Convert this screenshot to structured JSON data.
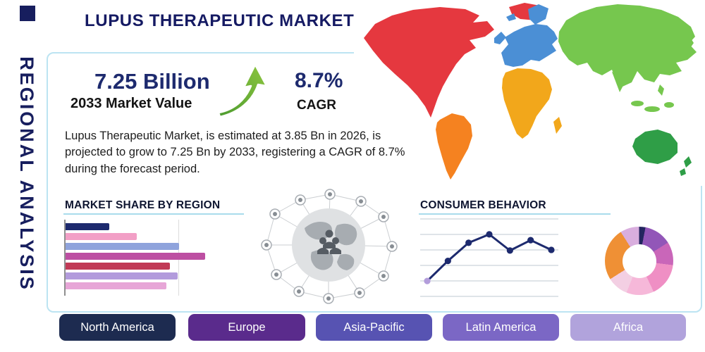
{
  "header": {
    "title": "LUPUS THERAPEUTIC MARKET"
  },
  "sidebar": {
    "vertical_label": "REGIONAL ANALYSIS"
  },
  "stats": {
    "market_value": "7.25 Billion",
    "market_value_label": "2033 Market Value",
    "growth_icon": "growth-arrow-icon",
    "cagr_value": "8.7%",
    "cagr_label": "CAGR"
  },
  "description": "Lupus Therapeutic Market, is estimated at 3.85 Bn in 2026, is projected to grow to 7.25 Bn by 2033, registering a CAGR of 8.7% during the forecast period.",
  "sections": {
    "market_share_heading": "MARKET SHARE BY REGION",
    "consumer_behavior_heading": "CONSUMER BEHAVIOR"
  },
  "region_buttons": [
    {
      "label": "North America",
      "color": "#1d2b50"
    },
    {
      "label": "Europe",
      "color": "#5a2b8c"
    },
    {
      "label": "Asia-Pacific",
      "color": "#5753b2"
    },
    {
      "label": "Latin America",
      "color": "#7b67c5"
    },
    {
      "label": "Africa",
      "color": "#b1a3dc"
    }
  ],
  "map": {
    "name": "world-map",
    "regions": [
      {
        "id": "north-america",
        "name": "North America",
        "color": "#e5383f"
      },
      {
        "id": "south-america",
        "name": "South America",
        "color": "#f58220"
      },
      {
        "id": "europe",
        "name": "Europe",
        "color": "#4b8fd5"
      },
      {
        "id": "africa",
        "name": "Africa",
        "color": "#f2a71b"
      },
      {
        "id": "asia",
        "name": "Asia",
        "color": "#76c74e"
      },
      {
        "id": "australia",
        "name": "Australia",
        "color": "#2f9e47"
      }
    ]
  },
  "chart_data": [
    {
      "type": "bar",
      "title": "Market Share by Region",
      "orientation": "horizontal",
      "axis_max": 100,
      "values": [
        24,
        39,
        62,
        76,
        57,
        61,
        55
      ],
      "colors": [
        "#1d2a6e",
        "#f29fc6",
        "#8fa3dc",
        "#bd4fa2",
        "#c13a56",
        "#b29bdc",
        "#e7a6d7"
      ],
      "grid": "single-vertical-gridline, left axis line, no tick labels"
    },
    {
      "type": "line",
      "title": "Consumer Behavior",
      "x": [
        1,
        2,
        3,
        4,
        5,
        6,
        7
      ],
      "values": [
        14,
        45,
        73,
        86,
        61,
        77,
        62
      ],
      "ylim": [
        0,
        100
      ],
      "line_color": "#1d2a6e",
      "first_marker_color": "#b39ddb",
      "grid": "horizontal"
    },
    {
      "type": "pie",
      "donut": true,
      "slices": [
        {
          "color": "#23255f",
          "value": 3
        },
        {
          "color": "#9256b8",
          "value": 13
        },
        {
          "color": "#c966b9",
          "value": 11
        },
        {
          "color": "#ef8fc4",
          "value": 16
        },
        {
          "color": "#f6b8d9",
          "value": 13
        },
        {
          "color": "#f3cfe3",
          "value": 10
        },
        {
          "color": "#ef9035",
          "value": 25
        },
        {
          "color": "#d9aede",
          "value": 9
        }
      ]
    }
  ]
}
